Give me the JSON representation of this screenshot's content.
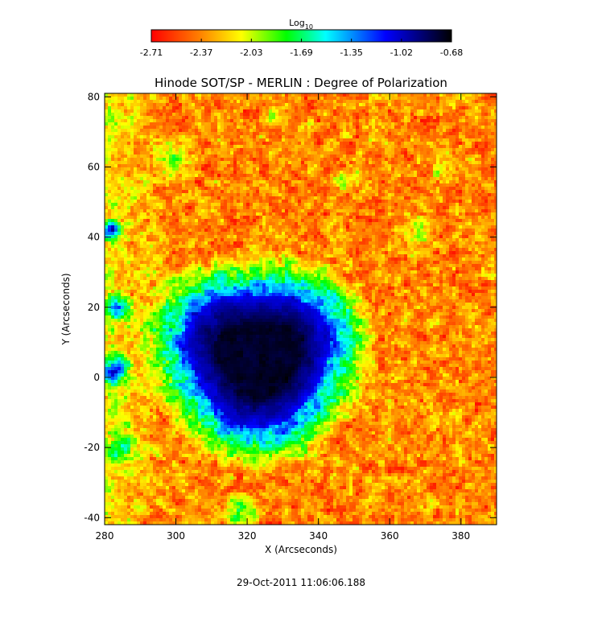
{
  "chart_data": {
    "type": "heatmap",
    "title": "Hinode SOT/SP - MERLIN : Degree of Polarization",
    "xlabel": "X (Arcseconds)",
    "ylabel": "Y (Arcseconds)",
    "xlim": [
      280,
      390
    ],
    "ylim": [
      -42,
      81
    ],
    "x_ticks": [
      280,
      300,
      320,
      340,
      360,
      380
    ],
    "y_ticks": [
      -40,
      -20,
      0,
      20,
      40,
      60,
      80
    ],
    "colorbar": {
      "label": "Log",
      "label_subscript": "10",
      "range": [
        -2.71,
        -0.68
      ],
      "ticks": [
        "-2.71",
        "-2.37",
        "-2.03",
        "-1.69",
        "-1.35",
        "-1.02",
        "-0.68"
      ],
      "colors": [
        "#ff0000",
        "#ff7f00",
        "#ffff00",
        "#00ff00",
        "#00ffff",
        "#0000ff",
        "#000000"
      ]
    },
    "features": {
      "spot_center": [
        323,
        6
      ],
      "spot_radius_arcsec": 20,
      "background_level": -2.6,
      "umbra_level": -0.75
    }
  },
  "timestamp": "29-Oct-2011 11:06:06.188"
}
